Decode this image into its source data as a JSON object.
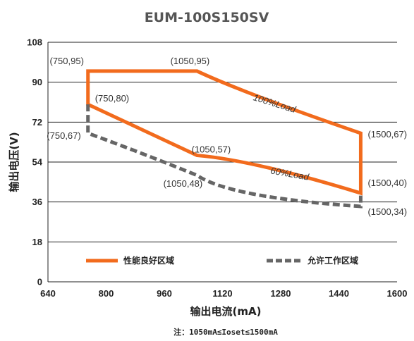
{
  "chart_data": {
    "type": "line",
    "title": "EUM-100S150SV",
    "xlabel": "输出电流(mA)",
    "ylabel": "输出电压(V)",
    "xlim": [
      640,
      1600
    ],
    "ylim": [
      0,
      108
    ],
    "xticks": [
      640,
      800,
      960,
      1120,
      1280,
      1440,
      1600
    ],
    "yticks": [
      0,
      18,
      36,
      54,
      72,
      90,
      108
    ],
    "grid": "horizontal",
    "legend_position": "bottom",
    "colors": {
      "good": "#f26b1d",
      "allowed": "#666666",
      "grid": "#222222"
    },
    "series": [
      {
        "name": "性能良好区域",
        "style": "solid",
        "points": [
          [
            750,
            95
          ],
          [
            1050,
            95
          ],
          [
            1500,
            67
          ],
          [
            1500,
            40
          ],
          [
            1050,
            57
          ],
          [
            750,
            80
          ],
          [
            750,
            95
          ]
        ]
      },
      {
        "name": "允许工作区域",
        "style": "dashed",
        "points": [
          [
            750,
            80
          ],
          [
            750,
            67
          ],
          [
            1050,
            48
          ],
          [
            1500,
            34
          ],
          [
            1500,
            40
          ]
        ]
      }
    ],
    "point_labels": [
      {
        "text": "(750,95)",
        "x": 750,
        "y": 95
      },
      {
        "text": "(1050,95)",
        "x": 1050,
        "y": 95
      },
      {
        "text": "(750,80)",
        "x": 750,
        "y": 80
      },
      {
        "text": "(1500,67)",
        "x": 1500,
        "y": 67
      },
      {
        "text": "(750,67)",
        "x": 750,
        "y": 67
      },
      {
        "text": "(1050,57)",
        "x": 1050,
        "y": 57
      },
      {
        "text": "(1050,48)",
        "x": 1050,
        "y": 48
      },
      {
        "text": "(1500,40)",
        "x": 1500,
        "y": 40
      },
      {
        "text": "(1500,34)",
        "x": 1500,
        "y": 34
      }
    ],
    "annotations": [
      {
        "text": "100%Load"
      },
      {
        "text": "60%Load"
      }
    ],
    "note": "注：1050mA≤Ioset≤1500mA"
  }
}
